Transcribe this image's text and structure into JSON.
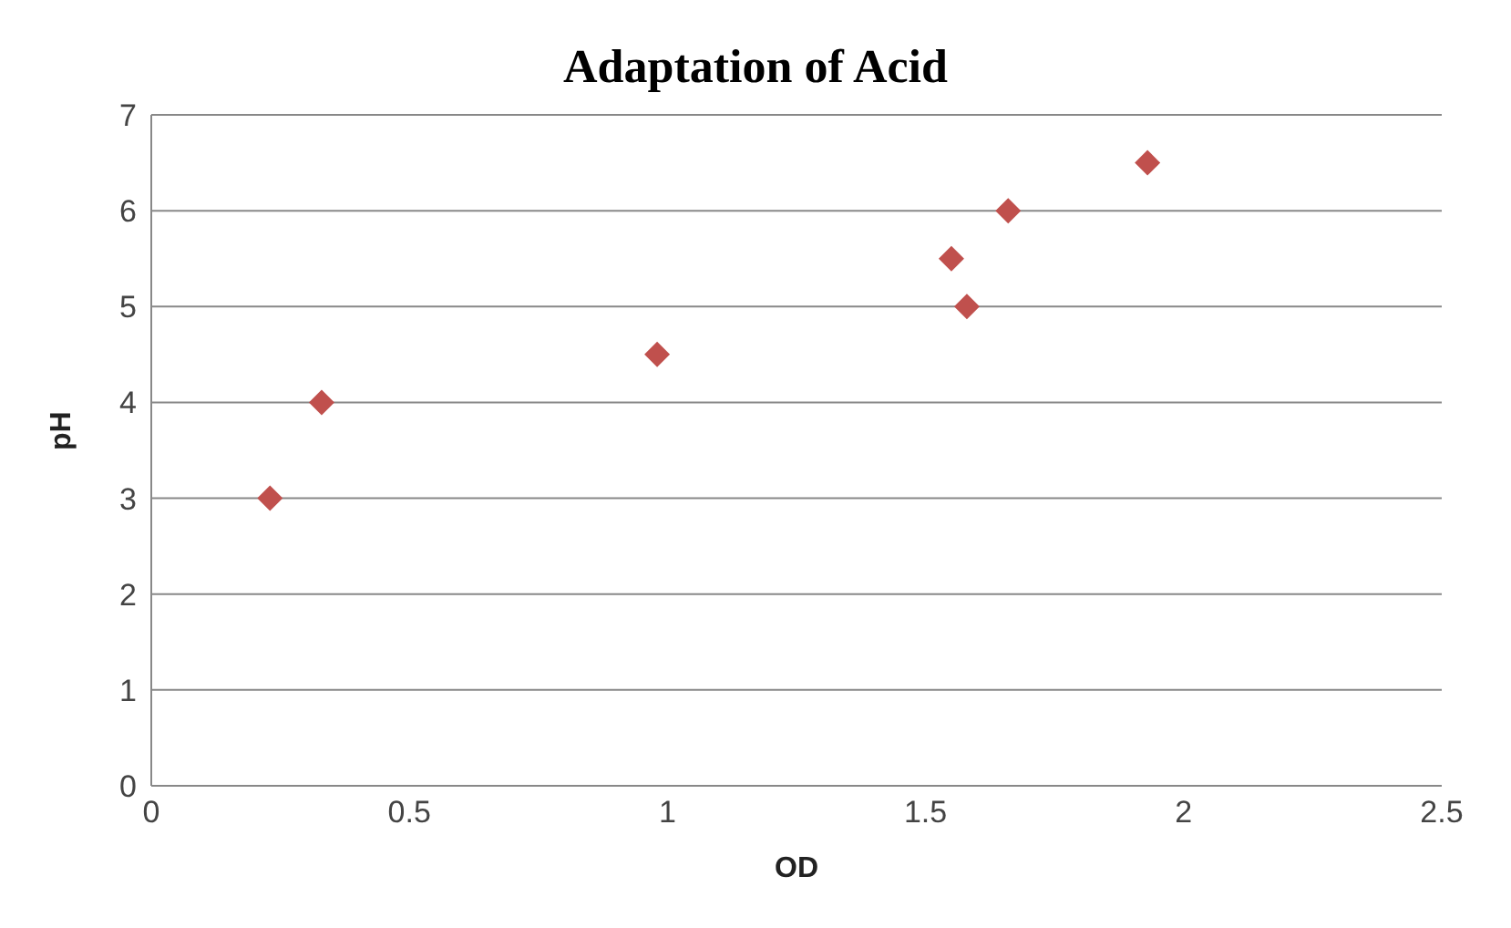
{
  "chart_data": {
    "type": "scatter",
    "title": "Adaptation of Acid",
    "xlabel": "OD",
    "ylabel": "pH",
    "x": [
      0.23,
      0.33,
      0.98,
      1.55,
      1.58,
      1.66,
      1.93
    ],
    "series": [
      {
        "color": "#c0504d",
        "values": [
          3,
          4,
          4.5,
          5.5,
          5,
          6,
          6.5
        ]
      }
    ],
    "xlim": [
      0,
      2.5
    ],
    "xticks": [
      0,
      0.5,
      1,
      1.5,
      2,
      2.5
    ],
    "ylim": [
      0,
      7
    ],
    "yticks": [
      0,
      1,
      2,
      3,
      4,
      5,
      6,
      7
    ],
    "grid": "y",
    "marker": "diamond",
    "legend": false
  }
}
